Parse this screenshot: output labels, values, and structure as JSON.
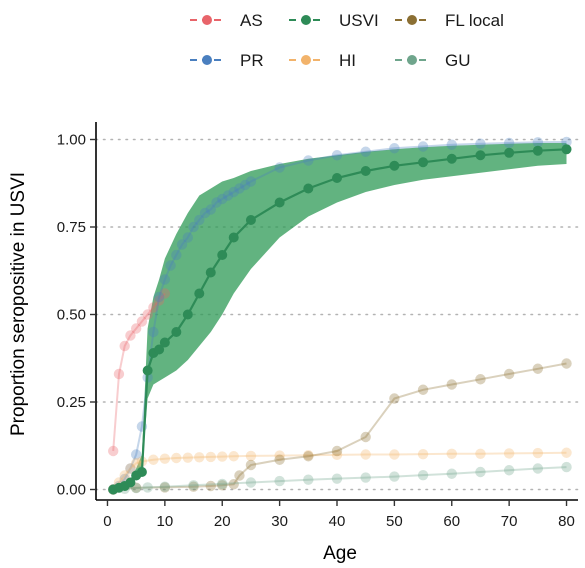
{
  "chart_data": {
    "type": "line",
    "xlabel": "Age",
    "ylabel": "Proportion seropositive in USVI",
    "xlim": [
      -2,
      82
    ],
    "ylim": [
      -0.03,
      1.05
    ],
    "xticks": [
      0,
      10,
      20,
      30,
      40,
      50,
      60,
      70,
      80
    ],
    "yticks": [
      0.0,
      0.25,
      0.5,
      0.75,
      1.0
    ],
    "ytick_labels": [
      "0.00",
      "0.25",
      "0.50",
      "0.75",
      "1.00"
    ],
    "grid": "horizontal dotted",
    "legend": {
      "position": "top",
      "rows": [
        [
          "AS",
          "USVI",
          "FL local"
        ],
        [
          "PR",
          "HI",
          "GU"
        ]
      ]
    },
    "series": [
      {
        "name": "AS",
        "color": "#e8646a",
        "highlighted": false,
        "x": [
          1,
          2,
          3,
          4,
          5,
          6,
          7,
          8,
          9,
          10
        ],
        "y": [
          0.11,
          0.33,
          0.41,
          0.44,
          0.46,
          0.48,
          0.5,
          0.52,
          0.54,
          0.56
        ]
      },
      {
        "name": "PR",
        "color": "#4a7fbf",
        "highlighted": false,
        "x": [
          1,
          2,
          3,
          4,
          5,
          6,
          7,
          8,
          9,
          10,
          11,
          12,
          13,
          14,
          15,
          16,
          17,
          18,
          19,
          20,
          21,
          22,
          23,
          24,
          25,
          30,
          35,
          40,
          45,
          50,
          55,
          60,
          65,
          70,
          75,
          80
        ],
        "y": [
          0.0,
          0.01,
          0.03,
          0.06,
          0.1,
          0.18,
          0.32,
          0.45,
          0.55,
          0.6,
          0.64,
          0.67,
          0.7,
          0.72,
          0.75,
          0.77,
          0.79,
          0.8,
          0.82,
          0.83,
          0.84,
          0.85,
          0.86,
          0.87,
          0.88,
          0.92,
          0.94,
          0.955,
          0.965,
          0.975,
          0.98,
          0.985,
          0.988,
          0.99,
          0.992,
          0.993
        ]
      },
      {
        "name": "USVI",
        "color": "#2e8b57",
        "highlighted": true,
        "band_color": "#2e9a55",
        "x": [
          1,
          2,
          3,
          4,
          5,
          6,
          7,
          8,
          9,
          10,
          12,
          14,
          16,
          18,
          20,
          22,
          25,
          30,
          35,
          40,
          45,
          50,
          55,
          60,
          65,
          70,
          75,
          80
        ],
        "y": [
          0.0,
          0.005,
          0.01,
          0.02,
          0.04,
          0.05,
          0.34,
          0.39,
          0.4,
          0.42,
          0.45,
          0.5,
          0.56,
          0.62,
          0.67,
          0.72,
          0.77,
          0.82,
          0.86,
          0.89,
          0.91,
          0.925,
          0.935,
          0.945,
          0.955,
          0.962,
          0.968,
          0.972
        ],
        "lower": [
          0.0,
          0.004,
          0.008,
          0.015,
          0.03,
          0.05,
          0.26,
          0.3,
          0.31,
          0.32,
          0.34,
          0.37,
          0.41,
          0.45,
          0.5,
          0.56,
          0.63,
          0.72,
          0.78,
          0.82,
          0.85,
          0.87,
          0.885,
          0.895,
          0.905,
          0.915,
          0.925,
          0.93
        ],
        "upper": [
          0.01,
          0.01,
          0.015,
          0.03,
          0.06,
          0.1,
          0.46,
          0.55,
          0.6,
          0.66,
          0.73,
          0.79,
          0.84,
          0.86,
          0.88,
          0.89,
          0.91,
          0.93,
          0.945,
          0.955,
          0.965,
          0.972,
          0.978,
          0.982,
          0.985,
          0.988,
          0.99,
          0.99
        ]
      },
      {
        "name": "HI",
        "color": "#f2b36b",
        "highlighted": false,
        "x": [
          1,
          2,
          3,
          4,
          5,
          6,
          8,
          10,
          12,
          14,
          16,
          18,
          20,
          22,
          25,
          30,
          35,
          40,
          45,
          50,
          55,
          60,
          65,
          70,
          75,
          80
        ],
        "y": [
          0.0,
          0.02,
          0.04,
          0.06,
          0.075,
          0.08,
          0.085,
          0.088,
          0.09,
          0.091,
          0.092,
          0.093,
          0.094,
          0.095,
          0.096,
          0.097,
          0.098,
          0.099,
          0.1,
          0.1,
          0.101,
          0.102,
          0.102,
          0.103,
          0.104,
          0.105
        ]
      },
      {
        "name": "FL local",
        "color": "#8b6f33",
        "highlighted": false,
        "x": [
          1,
          5,
          10,
          15,
          18,
          20,
          22,
          23,
          25,
          30,
          35,
          40,
          45,
          50,
          55,
          60,
          65,
          70,
          75,
          80
        ],
        "y": [
          0.0,
          0.005,
          0.006,
          0.008,
          0.01,
          0.012,
          0.015,
          0.04,
          0.07,
          0.085,
          0.095,
          0.11,
          0.15,
          0.26,
          0.285,
          0.3,
          0.315,
          0.33,
          0.345,
          0.36
        ]
      },
      {
        "name": "GU",
        "color": "#6fa58c",
        "highlighted": false,
        "x": [
          1,
          3,
          5,
          7,
          10,
          15,
          20,
          25,
          30,
          35,
          40,
          45,
          50,
          55,
          60,
          65,
          70,
          75,
          80
        ],
        "y": [
          0.0,
          0.002,
          0.004,
          0.006,
          0.008,
          0.012,
          0.016,
          0.02,
          0.024,
          0.028,
          0.031,
          0.034,
          0.037,
          0.041,
          0.045,
          0.05,
          0.055,
          0.06,
          0.064
        ]
      }
    ]
  }
}
